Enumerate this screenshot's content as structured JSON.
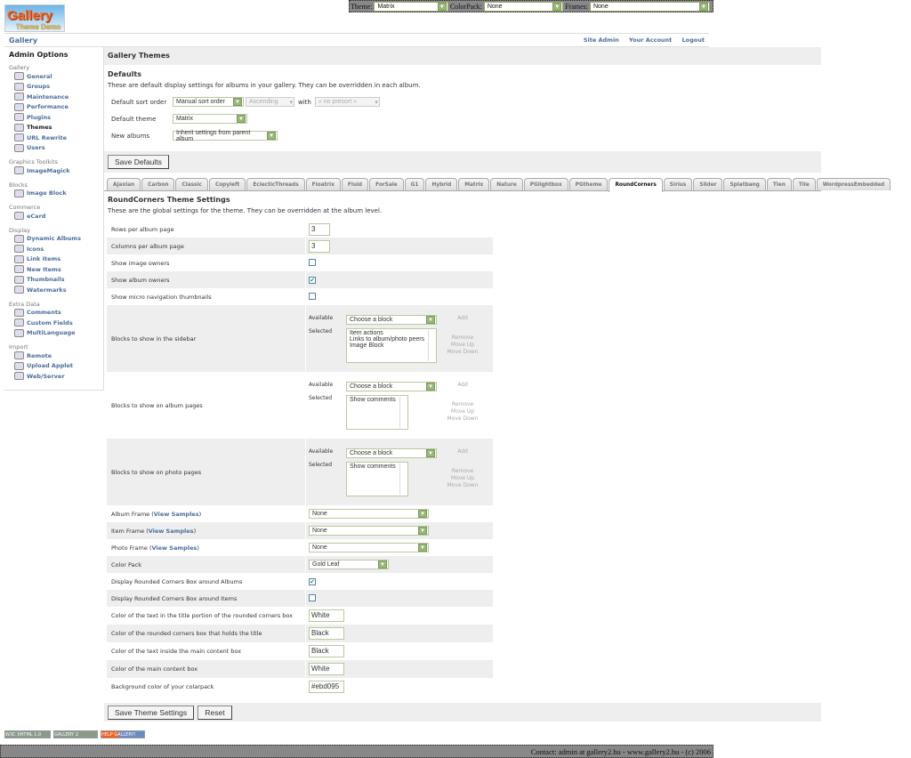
{
  "topbar": {
    "theme_label": "Theme:",
    "theme_value": "Matrix",
    "colorpack_label": "ColorPack:",
    "colorpack_value": "None",
    "frames_label": "Frames:",
    "frames_value": "None"
  },
  "logo": {
    "text": "Gallery",
    "subtext": "Theme Demo"
  },
  "breadcrumb": {
    "gallery": "Gallery",
    "links": [
      "Site Admin",
      "Your Account",
      "Logout"
    ]
  },
  "sidebar": {
    "title": "Admin Options",
    "sections": [
      {
        "label": "Gallery",
        "items": [
          "General",
          "Groups",
          "Maintenance",
          "Performance",
          "Plugins",
          "Themes",
          "URL Rewrite",
          "Users"
        ]
      },
      {
        "label": "Graphics Toolkits",
        "items": [
          "ImageMagick"
        ]
      },
      {
        "label": "Blocks",
        "items": [
          "Image Block"
        ]
      },
      {
        "label": "Commerce",
        "items": [
          "eCard"
        ]
      },
      {
        "label": "Display",
        "items": [
          "Dynamic Albums",
          "Icons",
          "Link Items",
          "New Items",
          "Thumbnails",
          "Watermarks"
        ]
      },
      {
        "label": "Extra Data",
        "items": [
          "Comments",
          "Custom Fields",
          "MultiLanguage"
        ]
      },
      {
        "label": "Import",
        "items": [
          "Remote",
          "Upload Applet",
          "Web/Server"
        ]
      }
    ],
    "current": "Themes"
  },
  "main": {
    "title": "Gallery Themes",
    "defaults_title": "Defaults",
    "defaults_desc": "These are default display settings for albums in your gallery. They can be overridden in each album.",
    "sort_label": "Default sort order",
    "sort_value": "Manual sort order",
    "sort_dir": "Ascending",
    "with_label": "with",
    "presort": "« no presort »",
    "theme_label": "Default theme",
    "theme_value": "Matrix",
    "new_label": "New albums",
    "new_value": "Inherit settings from parent album",
    "save_defaults": "Save Defaults"
  },
  "tabs": [
    "Ajaxian",
    "Carbon",
    "Classic",
    "Copyleft",
    "EclecticThreads",
    "Floatrix",
    "Fluid",
    "ForSale",
    "G1",
    "Hybrid",
    "Matrix",
    "Nature",
    "PGlightbox",
    "PGtheme",
    "RoundCorners",
    "Sirius",
    "Slider",
    "Splatbang",
    "Tien",
    "Tile",
    "WordpressEmbedded"
  ],
  "active_tab": "RoundCorners",
  "theme": {
    "title": "RoundCorners Theme Settings",
    "desc": "These are the global settings for the theme. They can be overridden at the album level.",
    "available_label": "Available",
    "selected_label": "Selected",
    "choose": "Choose a block",
    "add": "Add",
    "remove": "Remove",
    "move_up": "Move Up",
    "move_down": "Move Down",
    "view_samples": "View Samples",
    "rows": [
      {
        "label": "Rows per album page",
        "type": "text",
        "value": "3"
      },
      {
        "label": "Columns per album page",
        "type": "text",
        "value": "3"
      },
      {
        "label": "Show image owners",
        "type": "check",
        "checked": false
      },
      {
        "label": "Show album owners",
        "type": "check",
        "checked": true
      },
      {
        "label": "Show micro navigation thumbnails",
        "type": "check",
        "checked": false
      },
      {
        "label": "Blocks to show in the sidebar",
        "type": "blocks",
        "selected": [
          "Item actions",
          "Links to album/photo peers",
          "Image Block"
        ]
      },
      {
        "label": "Blocks to show on album pages",
        "type": "blocks",
        "selected": [
          "Show comments"
        ]
      },
      {
        "label": "Blocks to show on photo pages",
        "type": "blocks",
        "selected": [
          "Show comments"
        ]
      },
      {
        "label": "Album Frame",
        "type": "select",
        "samples": true,
        "value": "None"
      },
      {
        "label": "Item Frame",
        "type": "select",
        "samples": true,
        "value": "None"
      },
      {
        "label": "Photo Frame",
        "type": "select",
        "samples": true,
        "value": "None"
      },
      {
        "label": "Color Pack",
        "type": "selectsm",
        "value": "Gold Leaf"
      },
      {
        "label": "Display Rounded Corners Box around Albums",
        "type": "check",
        "checked": true
      },
      {
        "label": "Display Rounded Corners Box around Items",
        "type": "check",
        "checked": false
      },
      {
        "label": "Color of the text in the title portion of the rounded corners box",
        "type": "textw",
        "value": "White"
      },
      {
        "label": "Color of the rounded corners box that holds the title",
        "type": "textw",
        "value": "Black"
      },
      {
        "label": "Color of the text inside the main content box",
        "type": "textw",
        "value": "Black"
      },
      {
        "label": "Color of the main content box",
        "type": "textw",
        "value": "White"
      },
      {
        "label": "Background color of your colarpack",
        "type": "textw",
        "value": "#ebd095"
      }
    ],
    "save": "Save Theme Settings",
    "reset": "Reset"
  },
  "badges": [
    "W3C XHTML 1.0",
    "GALLERY 2",
    "HELP GALLERY!"
  ],
  "footer": "Contact: admin at gallery2.hu - www.gallery2.hu - (c) 2006"
}
